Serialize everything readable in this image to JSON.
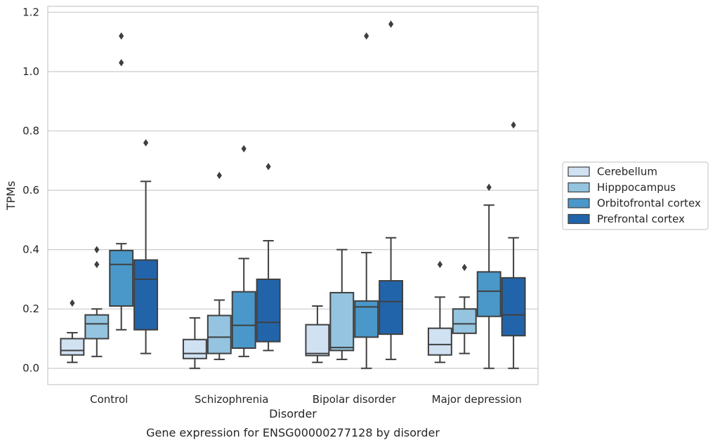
{
  "chart_data": {
    "type": "box",
    "title": "",
    "caption": "Gene expression for ENSG00000277128 by disorder",
    "xlabel": "Disorder",
    "ylabel": "TPMs",
    "ylim": [
      -0.055,
      1.22
    ],
    "yticks": [
      "0.0",
      "0.2",
      "0.4",
      "0.6",
      "0.8",
      "1.0",
      "1.2"
    ],
    "grid": true,
    "legend_position": "right",
    "categories": [
      "Control",
      "Schizophrenia",
      "Bipolar disorder",
      "Major depression"
    ],
    "series": [
      {
        "name": "Cerebellum",
        "color": "#d0e1f2",
        "boxes": [
          {
            "whislo": 0.02,
            "q1": 0.045,
            "med": 0.06,
            "q3": 0.1,
            "whishi": 0.12,
            "fliers": [
              0.22
            ]
          },
          {
            "whislo": 0.0,
            "q1": 0.033,
            "med": 0.05,
            "q3": 0.097,
            "whishi": 0.17,
            "fliers": []
          },
          {
            "whislo": 0.02,
            "q1": 0.043,
            "med": 0.05,
            "q3": 0.147,
            "whishi": 0.21,
            "fliers": []
          },
          {
            "whislo": 0.02,
            "q1": 0.045,
            "med": 0.08,
            "q3": 0.135,
            "whishi": 0.24,
            "fliers": [
              0.35
            ]
          }
        ]
      },
      {
        "name": "Hipppocampus",
        "color": "#94c4df",
        "boxes": [
          {
            "whislo": 0.04,
            "q1": 0.1,
            "med": 0.15,
            "q3": 0.18,
            "whishi": 0.2,
            "fliers": [
              0.35,
              0.4
            ]
          },
          {
            "whislo": 0.03,
            "q1": 0.05,
            "med": 0.105,
            "q3": 0.178,
            "whishi": 0.23,
            "fliers": [
              0.65
            ]
          },
          {
            "whislo": 0.03,
            "q1": 0.06,
            "med": 0.07,
            "q3": 0.255,
            "whishi": 0.4,
            "fliers": []
          },
          {
            "whislo": 0.05,
            "q1": 0.118,
            "med": 0.15,
            "q3": 0.2,
            "whishi": 0.24,
            "fliers": [
              0.34
            ]
          }
        ]
      },
      {
        "name": "Orbitofrontal cortex",
        "color": "#4a98c9",
        "boxes": [
          {
            "whislo": 0.13,
            "q1": 0.21,
            "med": 0.35,
            "q3": 0.397,
            "whishi": 0.42,
            "fliers": [
              1.03,
              1.12
            ]
          },
          {
            "whislo": 0.04,
            "q1": 0.068,
            "med": 0.145,
            "q3": 0.258,
            "whishi": 0.37,
            "fliers": [
              0.74
            ]
          },
          {
            "whislo": 0.0,
            "q1": 0.105,
            "med": 0.207,
            "q3": 0.227,
            "whishi": 0.39,
            "fliers": [
              1.12
            ]
          },
          {
            "whislo": 0.0,
            "q1": 0.175,
            "med": 0.26,
            "q3": 0.325,
            "whishi": 0.55,
            "fliers": [
              0.61
            ]
          }
        ]
      },
      {
        "name": "Prefrontal cortex",
        "color": "#2264aa",
        "boxes": [
          {
            "whislo": 0.05,
            "q1": 0.13,
            "med": 0.3,
            "q3": 0.365,
            "whishi": 0.63,
            "fliers": [
              0.76
            ]
          },
          {
            "whislo": 0.06,
            "q1": 0.09,
            "med": 0.155,
            "q3": 0.3,
            "whishi": 0.43,
            "fliers": [
              0.68
            ]
          },
          {
            "whislo": 0.03,
            "q1": 0.115,
            "med": 0.225,
            "q3": 0.295,
            "whishi": 0.44,
            "fliers": [
              1.16
            ]
          },
          {
            "whislo": 0.0,
            "q1": 0.11,
            "med": 0.18,
            "q3": 0.305,
            "whishi": 0.44,
            "fliers": [
              0.82
            ]
          }
        ]
      }
    ]
  }
}
